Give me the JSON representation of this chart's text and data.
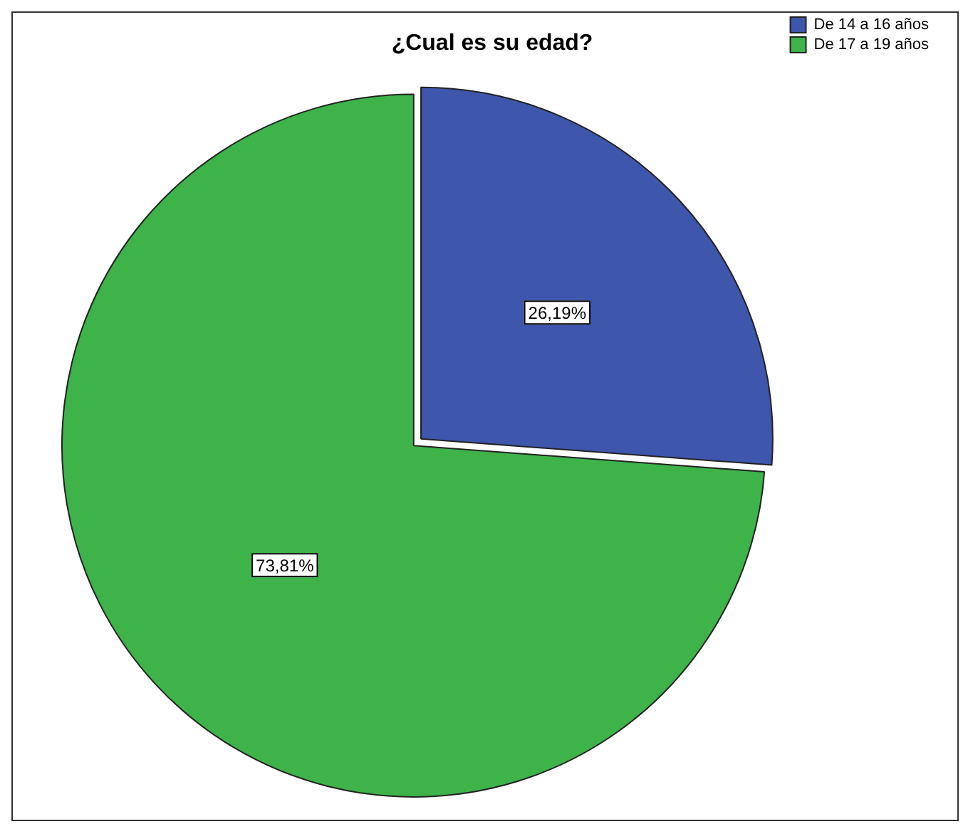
{
  "chart_data": {
    "type": "pie",
    "title": "¿Cual es su edad?",
    "categories": [
      "De 14 a 16 años",
      "De 17 a 19 años"
    ],
    "values": [
      26.19,
      73.81
    ],
    "colors": [
      "#3e56ab",
      "#3db34a"
    ],
    "value_labels": [
      "26,19%",
      "73,81%"
    ],
    "legend": "top right"
  }
}
